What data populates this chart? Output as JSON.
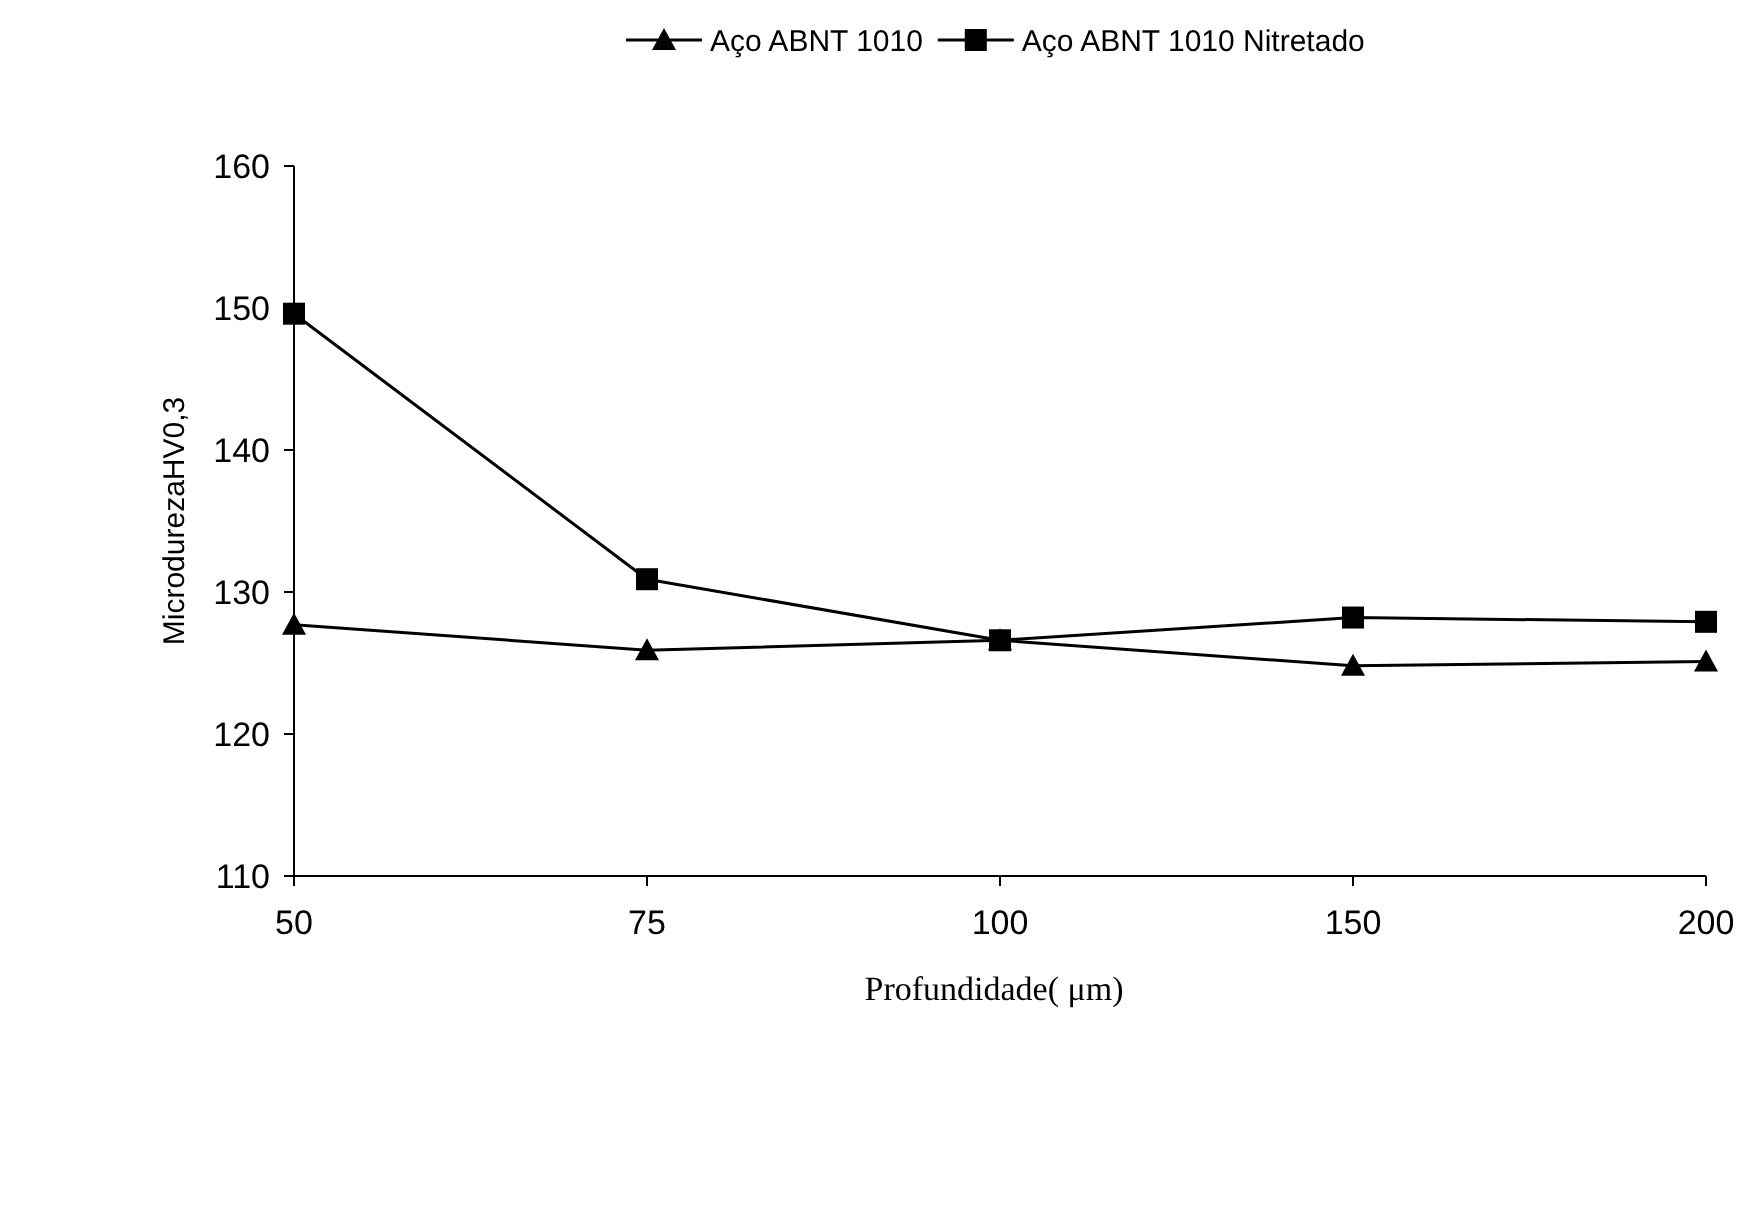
{
  "chart_data": {
    "type": "line",
    "xlabel": "Profundidade( μm)",
    "ylabel": "MicrodurezaHV0,3",
    "categories": [
      "50",
      "75",
      "100",
      "150",
      "200"
    ],
    "series": [
      {
        "name": "Aço ABNT 1010",
        "color": "#000000",
        "marker": "triangle",
        "values": [
          127.7,
          125.9,
          126.6,
          124.8,
          125.1
        ]
      },
      {
        "name": "Aço ABNT 1010 Nitretado",
        "color": "#000000",
        "marker": "square",
        "values": [
          149.6,
          130.9,
          126.6,
          128.2,
          127.9
        ]
      }
    ],
    "ylim": [
      110,
      160
    ],
    "yticks": [
      110,
      120,
      130,
      140,
      150,
      160
    ],
    "legend": "top",
    "grid": false,
    "line_style": "solid"
  }
}
